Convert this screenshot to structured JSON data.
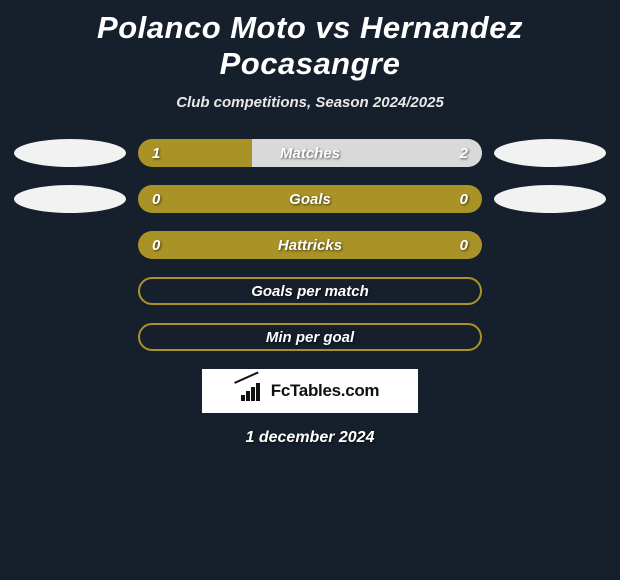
{
  "header": {
    "title": "Polanco Moto vs Hernandez Pocasangre",
    "subtitle": "Club competitions, Season 2024/2025"
  },
  "colors": {
    "background": "#16202c",
    "bar_primary": "#a99226",
    "bar_light": "#d9d9d9",
    "oval": "#f2f2f2",
    "text": "#ffffff"
  },
  "typography": {
    "title_fontsize": 31,
    "subtitle_fontsize": 15,
    "label_fontsize": 15
  },
  "stats": [
    {
      "label": "Matches",
      "left_value": "1",
      "right_value": "2",
      "left_fill_pct": 33,
      "right_fill_pct": 67,
      "left_color": "#a99226",
      "right_color": "#d9d9d9",
      "show_ovals": true,
      "filled": true
    },
    {
      "label": "Goals",
      "left_value": "0",
      "right_value": "0",
      "left_fill_pct": 100,
      "right_fill_pct": 0,
      "left_color": "#a99226",
      "right_color": "#a99226",
      "show_ovals": true,
      "filled": true
    },
    {
      "label": "Hattricks",
      "left_value": "0",
      "right_value": "0",
      "left_fill_pct": 100,
      "right_fill_pct": 0,
      "left_color": "#a99226",
      "right_color": "#a99226",
      "show_ovals": false,
      "filled": true
    },
    {
      "label": "Goals per match",
      "left_value": "",
      "right_value": "",
      "border_color": "#a99226",
      "show_ovals": false,
      "filled": false
    },
    {
      "label": "Min per goal",
      "left_value": "",
      "right_value": "",
      "border_color": "#a99226",
      "show_ovals": false,
      "filled": false
    }
  ],
  "footer": {
    "logo_text": "FcTables.com",
    "date": "1 december 2024"
  }
}
